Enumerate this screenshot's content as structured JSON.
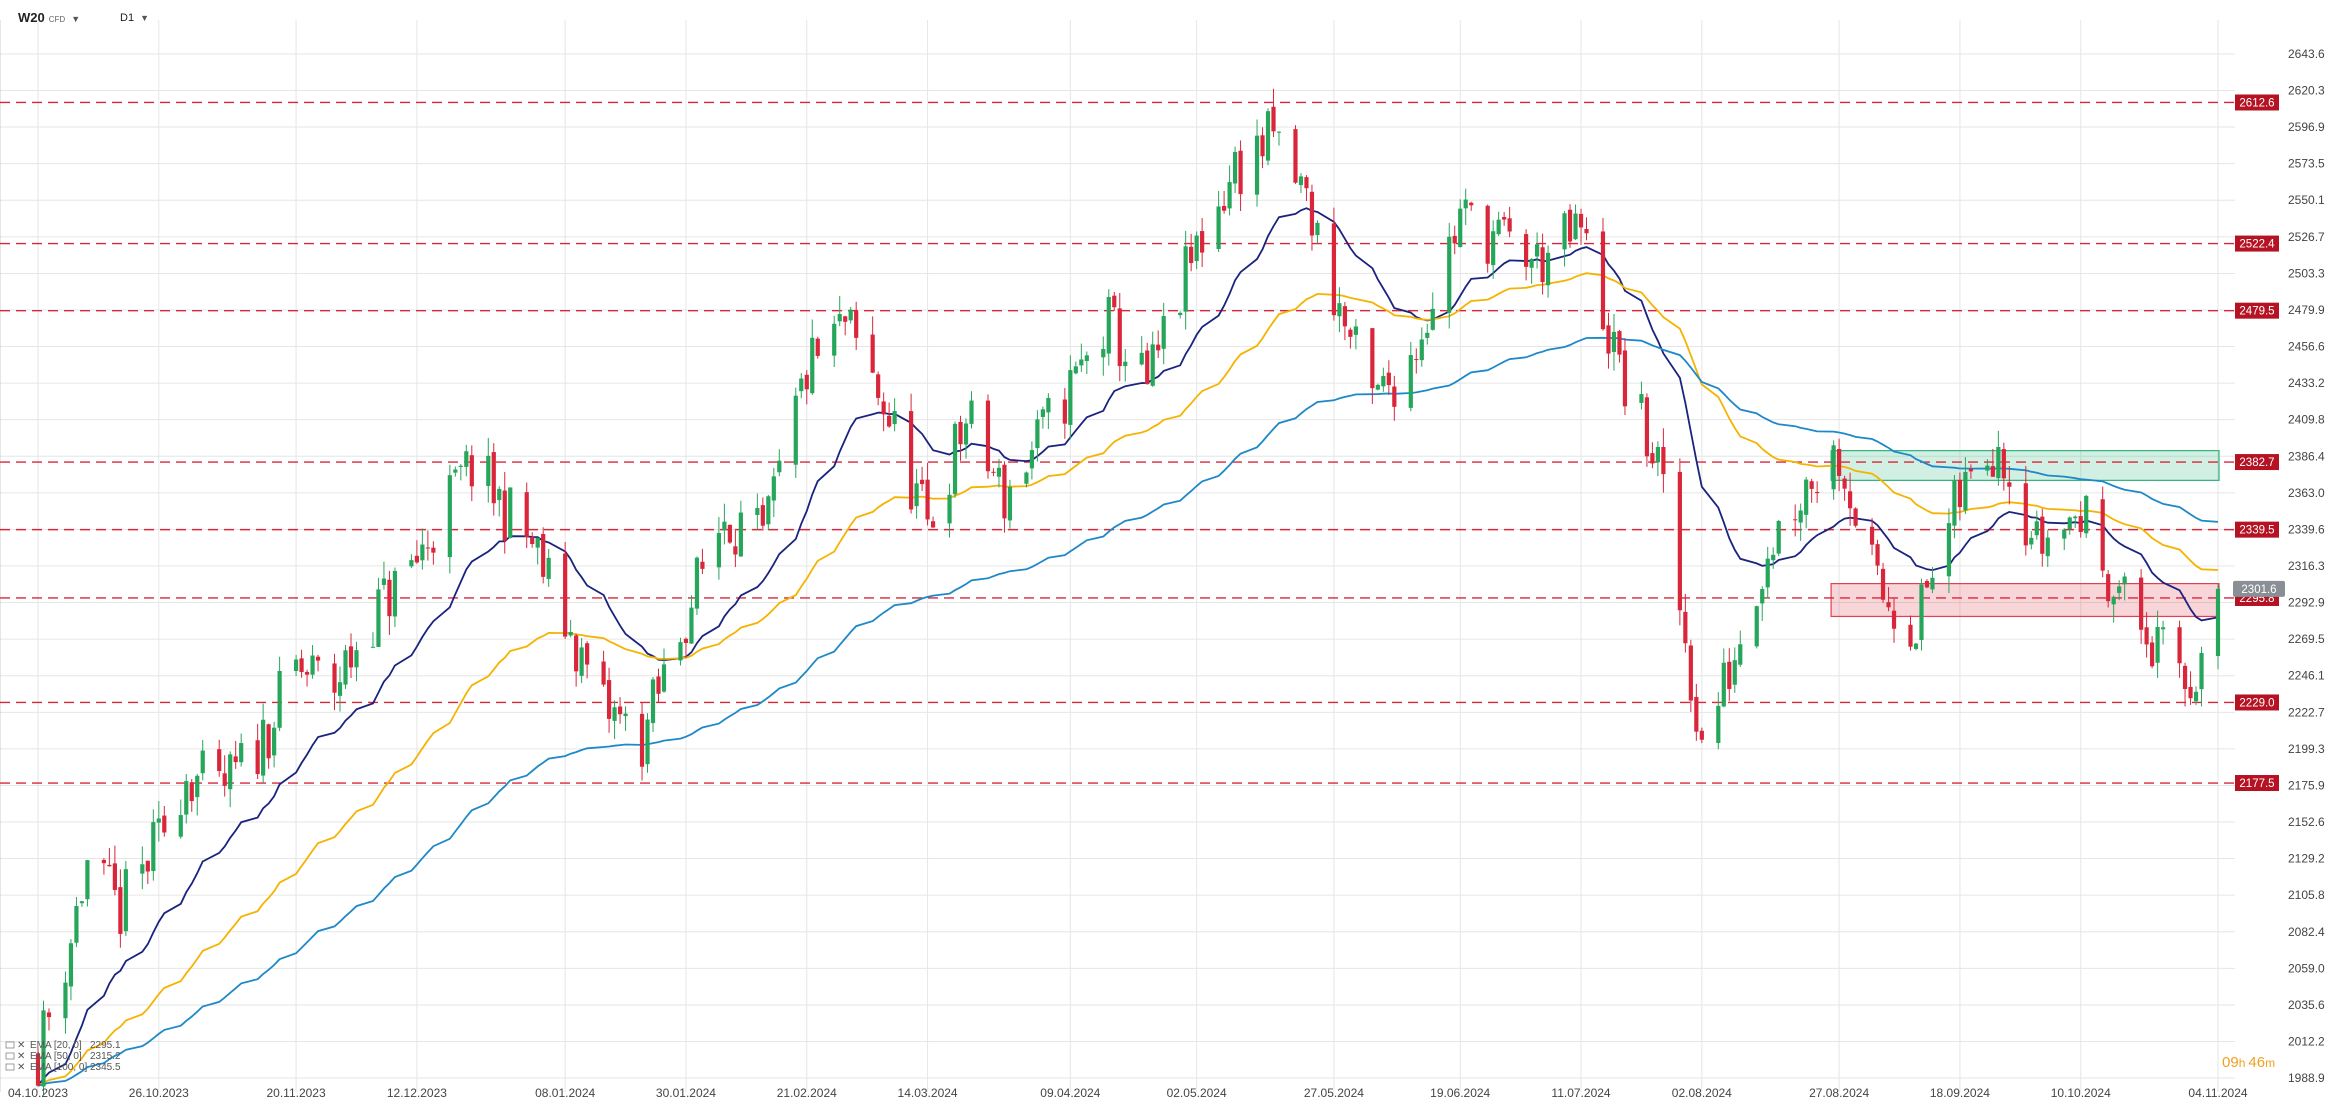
{
  "toolbar": {
    "symbol": "W20",
    "instrument_type": "CFD",
    "interval": "D1"
  },
  "countdown": {
    "hours": "09",
    "h_unit": "h",
    "minutes": "46",
    "m_unit": "m"
  },
  "indicators": [
    {
      "label": "EMA [20, 0]",
      "value": "2295.1",
      "color": "#1a237e"
    },
    {
      "label": "EMA [50, 0]",
      "value": "2315.2",
      "color": "#f5b301"
    },
    {
      "label": "EMA [100, 0]",
      "value": "2345.5",
      "color": "#1e88c8"
    }
  ],
  "chart_data": {
    "type": "candlestick",
    "y_axis": {
      "min": 1988.9,
      "max": 2643.6,
      "ticks": [
        "2643.6",
        "2620.3",
        "2596.9",
        "2573.5",
        "2550.1",
        "2526.7",
        "2503.3",
        "2479.9",
        "2456.6",
        "2433.2",
        "2409.8",
        "2386.4",
        "2363.0",
        "2339.6",
        "2316.3",
        "2292.9",
        "2269.5",
        "2246.1",
        "2222.7",
        "2199.3",
        "2175.9",
        "2152.6",
        "2129.2",
        "2105.8",
        "2082.4",
        "2059.0",
        "2035.6",
        "2012.2",
        "1988.9"
      ]
    },
    "x_axis": {
      "ticks": [
        "04.10.2023",
        "26.10.2023",
        "20.11.2023",
        "12.12.2023",
        "08.01.2024",
        "30.01.2024",
        "21.02.2024",
        "14.03.2024",
        "09.04.2024",
        "02.05.2024",
        "27.05.2024",
        "19.06.2024",
        "11.07.2024",
        "02.08.2024",
        "27.08.2024",
        "18.09.2024",
        "10.10.2024",
        "04.11.2024"
      ]
    },
    "current_price": 2301.6,
    "horizontal_levels": [
      {
        "value": 2612.6,
        "label": "2612.6"
      },
      {
        "value": 2522.4,
        "label": "2522.4"
      },
      {
        "value": 2479.5,
        "label": "2479.5"
      },
      {
        "value": 2382.7,
        "label": "2382.7"
      },
      {
        "value": 2339.5,
        "label": "2339.5"
      },
      {
        "value": 2295.8,
        "label": "2295.8"
      },
      {
        "value": 2229.0,
        "label": "2229.0"
      },
      {
        "value": 2177.5,
        "label": "2177.5"
      }
    ],
    "zones": [
      {
        "name": "resistance zone",
        "from_date": "27.08.2024",
        "to_date": "04.11.2024",
        "y_low": 2371.0,
        "y_high": 2390.0,
        "color": "#2fb47a"
      },
      {
        "name": "support zone",
        "from_date": "27.08.2024",
        "to_date": "04.11.2024",
        "y_low": 2284.0,
        "y_high": 2305.0,
        "color": "#e04050"
      }
    ],
    "close_path": [
      [
        "04.10.2023",
        2005
      ],
      [
        "09.10.2023",
        2065
      ],
      [
        "13.10.2023",
        2125
      ],
      [
        "19.10.2023",
        2095
      ],
      [
        "26.10.2023",
        2140
      ],
      [
        "31.10.2023",
        2185
      ],
      [
        "06.11.2023",
        2170
      ],
      [
        "13.11.2023",
        2200
      ],
      [
        "20.11.2023",
        2250
      ],
      [
        "27.11.2023",
        2240
      ],
      [
        "04.12.2023",
        2285
      ],
      [
        "12.12.2023",
        2320
      ],
      [
        "18.12.2023",
        2360
      ],
      [
        "22.12.2023",
        2380
      ],
      [
        "02.01.2024",
        2330
      ],
      [
        "08.01.2024",
        2280
      ],
      [
        "15.01.2024",
        2225
      ],
      [
        "22.01.2024",
        2205
      ],
      [
        "30.01.2024",
        2285
      ],
      [
        "06.02.2024",
        2350
      ],
      [
        "13.02.2024",
        2330
      ],
      [
        "21.02.2024",
        2440
      ],
      [
        "28.02.2024",
        2470
      ],
      [
        "06.03.2024",
        2420
      ],
      [
        "14.03.2024",
        2340
      ],
      [
        "21.03.2024",
        2410
      ],
      [
        "28.03.2024",
        2360
      ],
      [
        "09.04.2024",
        2430
      ],
      [
        "16.04.2024",
        2470
      ],
      [
        "23.04.2024",
        2430
      ],
      [
        "02.05.2024",
        2520
      ],
      [
        "09.05.2024",
        2570
      ],
      [
        "16.05.2024",
        2590
      ],
      [
        "22.05.2024",
        2550
      ],
      [
        "27.05.2024",
        2490
      ],
      [
        "03.06.2024",
        2420
      ],
      [
        "10.06.2024",
        2450
      ],
      [
        "19.06.2024",
        2540
      ],
      [
        "26.06.2024",
        2525
      ],
      [
        "03.07.2024",
        2510
      ],
      [
        "11.07.2024",
        2530
      ],
      [
        "18.07.2024",
        2440
      ],
      [
        "25.07.2024",
        2380
      ],
      [
        "02.08.2024",
        2200
      ],
      [
        "07.08.2024",
        2250
      ],
      [
        "14.08.2024",
        2330
      ],
      [
        "21.08.2024",
        2370
      ],
      [
        "27.08.2024",
        2390
      ],
      [
        "03.09.2024",
        2300
      ],
      [
        "10.09.2024",
        2280
      ],
      [
        "18.09.2024",
        2360
      ],
      [
        "25.09.2024",
        2400
      ],
      [
        "02.10.2024",
        2330
      ],
      [
        "10.10.2024",
        2350
      ],
      [
        "17.10.2024",
        2300
      ],
      [
        "24.10.2024",
        2260
      ],
      [
        "30.10.2024",
        2240
      ],
      [
        "04.11.2024",
        2301.6
      ]
    ]
  },
  "colors": {
    "up": "#26a65b",
    "down": "#d9263b",
    "level_line": "#d9263b",
    "grid": "#e6e6e6"
  }
}
